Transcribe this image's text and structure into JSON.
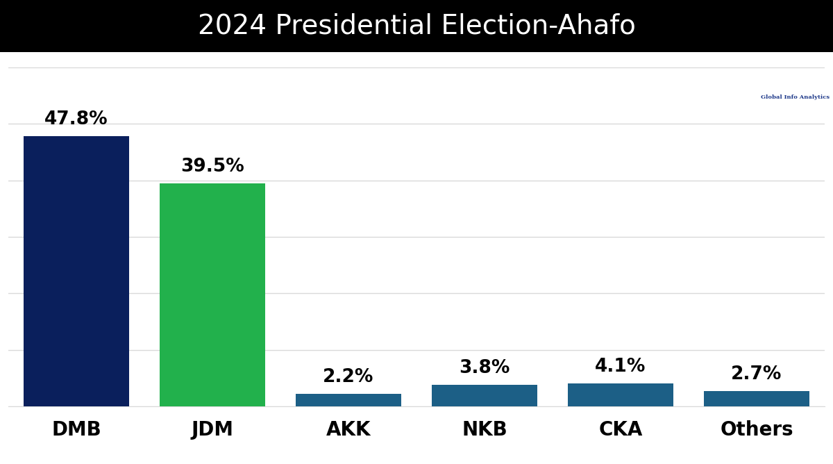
{
  "chart_data": {
    "type": "bar",
    "title": "2024 Presidential Election-Ahafo",
    "source": "Global Info Analytics",
    "categories": [
      "DMB",
      "JDM",
      "AKK",
      "NKB",
      "CKA",
      "Others"
    ],
    "values": [
      47.8,
      39.5,
      2.2,
      3.8,
      4.1,
      2.7
    ],
    "value_labels": [
      "47.8%",
      "39.5%",
      "2.2%",
      "3.8%",
      "4.1%",
      "2.7%"
    ],
    "colors": [
      "#0a1f5c",
      "#22b14c",
      "#1c5f86",
      "#1c5f86",
      "#1c5f86",
      "#1c5f86"
    ],
    "ylim": [
      0,
      60
    ],
    "yticks": [
      0,
      10,
      20,
      30,
      40,
      50,
      60
    ],
    "grid": true,
    "data_labels": true,
    "tick_labels": "x"
  }
}
